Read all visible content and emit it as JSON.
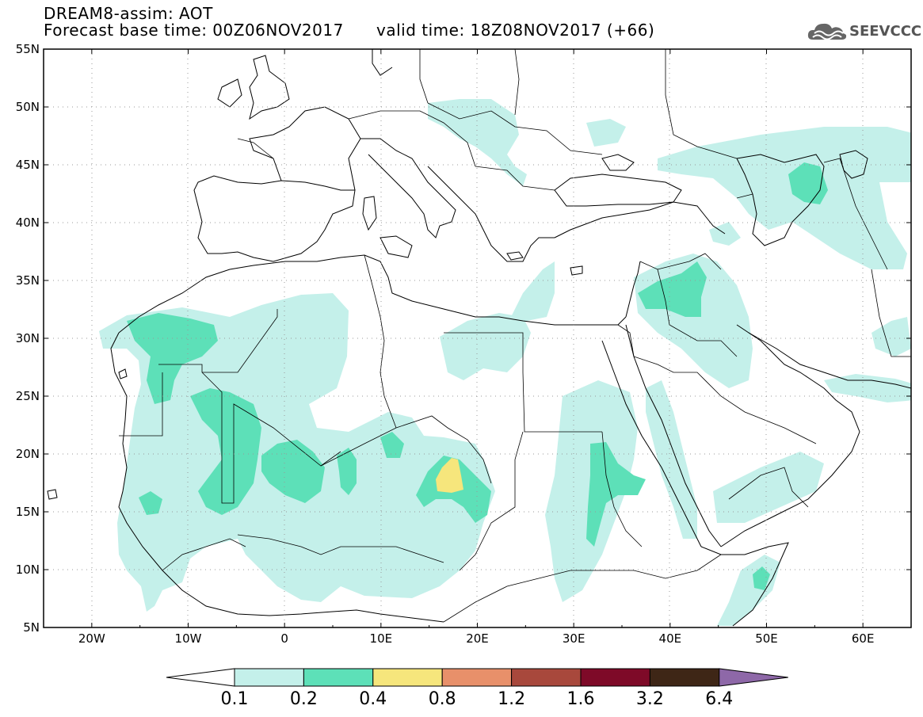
{
  "header": {
    "model_line": "DREAM8-assim: AOT",
    "base_time": "Forecast base time: 00Z06NOV2017",
    "valid_time": "valid time: 18Z08NOV2017 (+66)"
  },
  "logo": {
    "text": "SEEVCCC",
    "icon": "cloud-icon"
  },
  "map": {
    "lat_labels": [
      "55N",
      "50N",
      "45N",
      "40N",
      "35N",
      "30N",
      "25N",
      "20N",
      "15N",
      "10N",
      "5N"
    ],
    "lon_labels": [
      "20W",
      "10W",
      "0",
      "10E",
      "20E",
      "30E",
      "40E",
      "50E",
      "60E"
    ],
    "lon_range": [
      -25,
      65
    ],
    "lat_range": [
      5,
      55
    ],
    "grid": true,
    "land_color": "#ffffff",
    "coast_color": "#000000"
  },
  "colorbar": {
    "levels": [
      "0.1",
      "0.2",
      "0.4",
      "0.8",
      "1.2",
      "1.6",
      "3.2",
      "6.4"
    ],
    "colors": [
      "#c4f0ea",
      "#5de0b8",
      "#f6e67c",
      "#e8906a",
      "#a8483c",
      "#7e0a28",
      "#3e2616",
      "#8e68a8"
    ],
    "under_color": "#ffffff"
  },
  "colors": {
    "c01": "#c4f0ea",
    "c02": "#5de0b8",
    "c04": "#f6e67c"
  }
}
